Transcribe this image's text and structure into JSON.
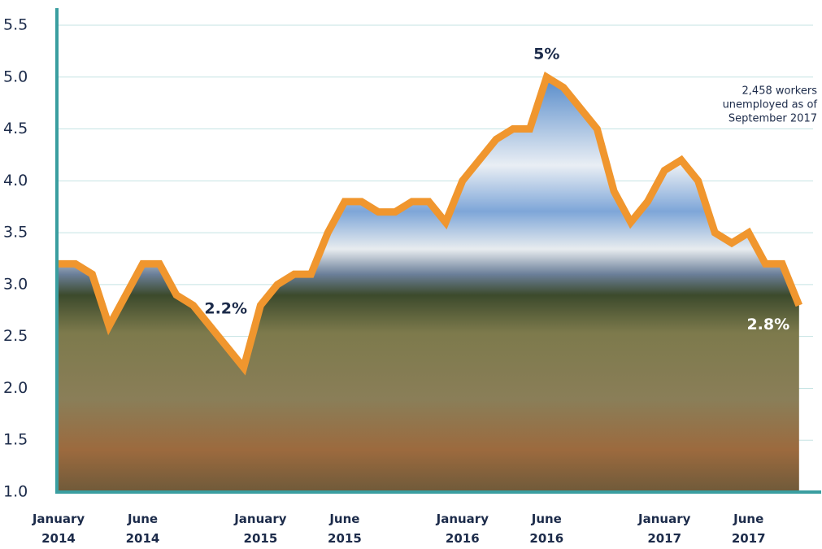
{
  "chart_data": {
    "type": "line",
    "categories": [
      "January 2014",
      null,
      null,
      null,
      null,
      "June 2014",
      null,
      null,
      null,
      null,
      null,
      null,
      "January 2015",
      null,
      null,
      null,
      null,
      "June 2015",
      null,
      null,
      null,
      null,
      null,
      null,
      "January 2016",
      null,
      null,
      null,
      null,
      "June 2016",
      null,
      null,
      null,
      null,
      null,
      null,
      "January 2017",
      null,
      null,
      null,
      null,
      "June 2017",
      null,
      null,
      null
    ],
    "series": [
      {
        "color": "#f0962e",
        "values": [
          3.2,
          3.2,
          3.1,
          2.6,
          2.9,
          3.2,
          3.2,
          2.9,
          2.8,
          2.6,
          2.4,
          2.2,
          2.8,
          3.0,
          3.1,
          3.1,
          3.5,
          3.8,
          3.8,
          3.7,
          3.7,
          3.8,
          3.8,
          3.6,
          4.0,
          4.2,
          4.4,
          4.5,
          4.5,
          5.0,
          4.9,
          4.7,
          4.5,
          3.9,
          3.6,
          3.8,
          4.1,
          4.2,
          4.0,
          3.5,
          3.4,
          3.5,
          3.2,
          3.2,
          2.8
        ],
        "value_labels": [
          null,
          null,
          null,
          null,
          null,
          null,
          null,
          null,
          null,
          null,
          null,
          "2.2%",
          null,
          null,
          null,
          null,
          null,
          null,
          null,
          null,
          null,
          null,
          null,
          null,
          null,
          null,
          null,
          null,
          null,
          "5%",
          null,
          null,
          null,
          null,
          null,
          null,
          null,
          null,
          null,
          null,
          null,
          null,
          null,
          null,
          "2.8%"
        ]
      }
    ],
    "ylim": [
      1,
      5.5
    ],
    "yticks": [
      {
        "value": 1,
        "label": "1.0"
      },
      1.5,
      {
        "value": 2,
        "label": "2.0"
      },
      2.5,
      {
        "value": 3,
        "label": "3.0"
      },
      3.5,
      {
        "value": 4,
        "label": "4.0"
      },
      4.5,
      {
        "value": 5,
        "label": "5.0"
      },
      5.5
    ],
    "grid": true,
    "annotation": [
      "2,458 workers",
      "unemployed as of",
      "September 2017"
    ]
  }
}
